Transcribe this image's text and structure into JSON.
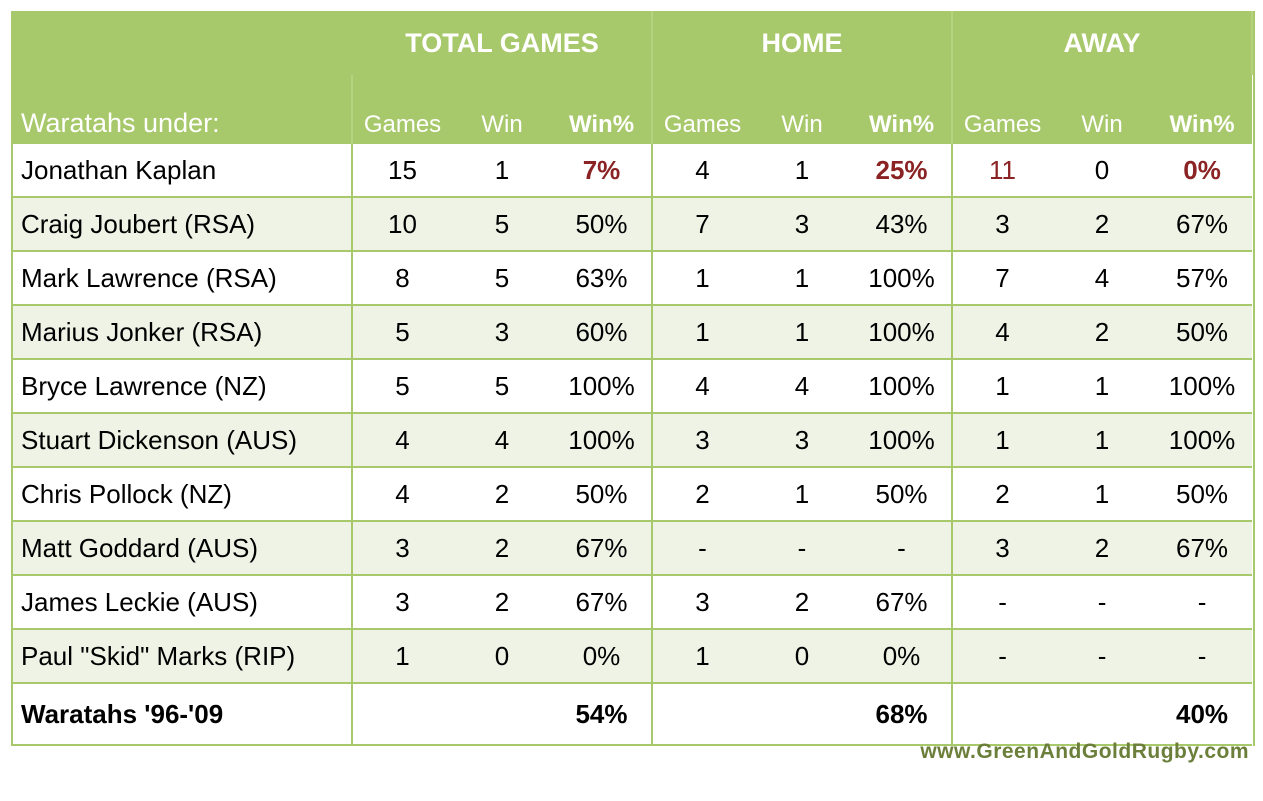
{
  "groups": [
    "TOTAL GAMES",
    "HOME",
    "AWAY"
  ],
  "row_label": "Waratahs under:",
  "col_headers": [
    "Games",
    "Win",
    "Win%",
    "Games",
    "Win",
    "Win%",
    "Games",
    "Win",
    "Win%"
  ],
  "rows": [
    {
      "name": "Jonathan Kaplan",
      "values": [
        "15",
        "1",
        "7%",
        "4",
        "1",
        "25%",
        "11",
        "0",
        "0%"
      ]
    },
    {
      "name": "Craig Joubert (RSA)",
      "values": [
        "10",
        "5",
        "50%",
        "7",
        "3",
        "43%",
        "3",
        "2",
        "67%"
      ]
    },
    {
      "name": "Mark Lawrence (RSA)",
      "values": [
        "8",
        "5",
        "63%",
        "1",
        "1",
        "100%",
        "7",
        "4",
        "57%"
      ]
    },
    {
      "name": "Marius Jonker (RSA)",
      "values": [
        "5",
        "3",
        "60%",
        "1",
        "1",
        "100%",
        "4",
        "2",
        "50%"
      ]
    },
    {
      "name": "Bryce Lawrence (NZ)",
      "values": [
        "5",
        "5",
        "100%",
        "4",
        "4",
        "100%",
        "1",
        "1",
        "100%"
      ]
    },
    {
      "name": "Stuart Dickenson (AUS)",
      "values": [
        "4",
        "4",
        "100%",
        "3",
        "3",
        "100%",
        "1",
        "1",
        "100%"
      ]
    },
    {
      "name": "Chris Pollock (NZ)",
      "values": [
        "4",
        "2",
        "50%",
        "2",
        "1",
        "50%",
        "2",
        "1",
        "50%"
      ]
    },
    {
      "name": "Matt Goddard (AUS)",
      "values": [
        "3",
        "2",
        "67%",
        "-",
        "-",
        "-",
        "3",
        "2",
        "67%"
      ]
    },
    {
      "name": "James Leckie (AUS)",
      "values": [
        "3",
        "2",
        "67%",
        "3",
        "2",
        "67%",
        "-",
        "-",
        "-"
      ]
    },
    {
      "name": "Paul \"Skid\" Marks (RIP)",
      "values": [
        "1",
        "0",
        "0%",
        "1",
        "0",
        "0%",
        "-",
        "-",
        "-"
      ]
    }
  ],
  "summary": {
    "name": "Waratahs '96-'09",
    "total_pct": "54%",
    "home_pct": "68%",
    "away_pct": "40%"
  },
  "footer": "www.GreenAndGoldRugby.com",
  "colors": {
    "header_green": "#a8c96b",
    "alt_row": "#eef3e6",
    "highlight_red": "#8b2324",
    "footer_text": "#6b7f3a"
  }
}
